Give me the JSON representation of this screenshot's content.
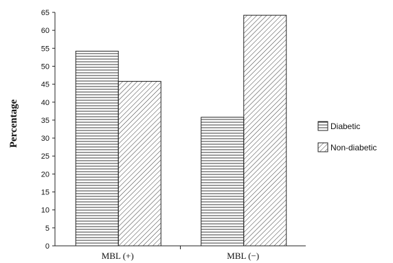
{
  "chart_data": {
    "type": "bar",
    "categories": [
      "MBL (+)",
      "MBL (−)"
    ],
    "series": [
      {
        "name": "Diabetic",
        "values": [
          54.2,
          35.8
        ],
        "pattern": "horizontal"
      },
      {
        "name": "Non-diabetic",
        "values": [
          45.8,
          64.2
        ],
        "pattern": "diagonal"
      }
    ],
    "title": "",
    "xlabel": "",
    "ylabel": "Percentage",
    "ylim": [
      0,
      65
    ],
    "yticks": [
      0,
      5,
      10,
      15,
      20,
      25,
      30,
      35,
      40,
      45,
      50,
      55,
      60,
      65
    ],
    "legend_position": "right",
    "grid": false,
    "colors": {
      "stroke": "#222222",
      "fill": "#ffffff"
    }
  }
}
